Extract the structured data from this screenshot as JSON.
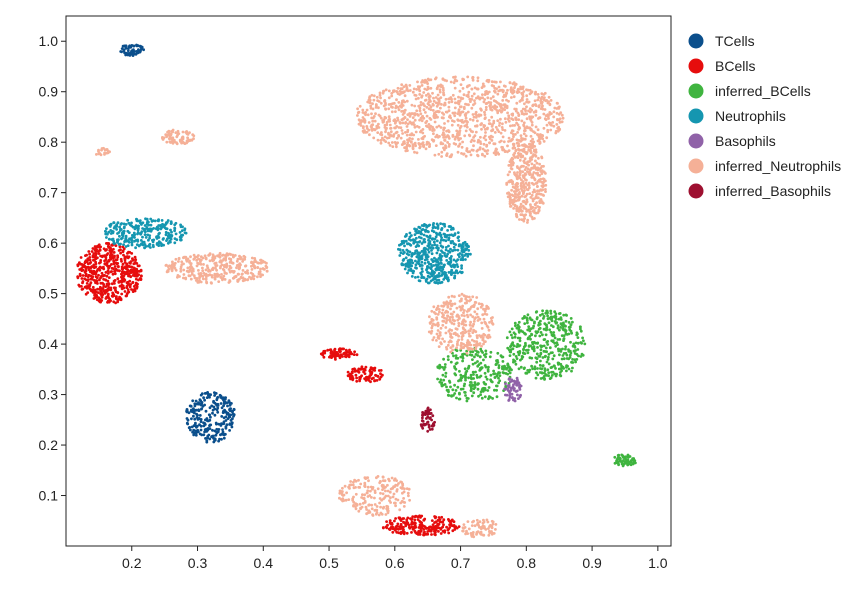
{
  "chart_data": {
    "type": "scatter",
    "title": "",
    "xlabel": "",
    "ylabel": "",
    "xlim": [
      0.1,
      1.02
    ],
    "ylim": [
      0.0,
      1.05
    ],
    "grid": false,
    "legend_position": "right",
    "x_ticks": [
      0.2,
      0.3,
      0.4,
      0.5,
      0.6,
      0.7,
      0.8,
      0.9,
      1.0
    ],
    "y_ticks": [
      0.1,
      0.2,
      0.3,
      0.4,
      0.5,
      0.6,
      0.7,
      0.8,
      0.9,
      1.0
    ],
    "x_tick_labels": [
      "0.2",
      "0.3",
      "0.4",
      "0.5",
      "0.6",
      "0.7",
      "0.8",
      "0.9",
      "1.0"
    ],
    "y_tick_labels": [
      "0.1",
      "0.2",
      "0.3",
      "0.4",
      "0.5",
      "0.6",
      "0.7",
      "0.8",
      "0.9",
      "1.0"
    ],
    "series": [
      {
        "name": "TCells",
        "color": "#0b4f8c",
        "clusters": [
          {
            "cx": 0.2,
            "cy": 0.983,
            "rx": 0.018,
            "ry": 0.012,
            "n": 60
          },
          {
            "cx": 0.32,
            "cy": 0.255,
            "rx": 0.038,
            "ry": 0.05,
            "n": 260
          }
        ]
      },
      {
        "name": "BCells",
        "color": "#e60d0d",
        "clusters": [
          {
            "cx": 0.165,
            "cy": 0.54,
            "rx": 0.05,
            "ry": 0.06,
            "n": 520
          },
          {
            "cx": 0.515,
            "cy": 0.38,
            "rx": 0.028,
            "ry": 0.012,
            "n": 80
          },
          {
            "cx": 0.555,
            "cy": 0.34,
            "rx": 0.028,
            "ry": 0.016,
            "n": 90
          },
          {
            "cx": 0.64,
            "cy": 0.04,
            "rx": 0.06,
            "ry": 0.02,
            "n": 220
          }
        ]
      },
      {
        "name": "inferred_BCells",
        "color": "#3fb43f",
        "clusters": [
          {
            "cx": 0.72,
            "cy": 0.34,
            "rx": 0.06,
            "ry": 0.055,
            "n": 260
          },
          {
            "cx": 0.83,
            "cy": 0.4,
            "rx": 0.06,
            "ry": 0.07,
            "n": 400
          },
          {
            "cx": 0.95,
            "cy": 0.17,
            "rx": 0.018,
            "ry": 0.012,
            "n": 60
          }
        ]
      },
      {
        "name": "Neutrophils",
        "color": "#1596b0",
        "clusters": [
          {
            "cx": 0.22,
            "cy": 0.62,
            "rx": 0.065,
            "ry": 0.03,
            "n": 280
          },
          {
            "cx": 0.66,
            "cy": 0.58,
            "rx": 0.055,
            "ry": 0.06,
            "n": 500
          }
        ]
      },
      {
        "name": "Basophils",
        "color": "#9062a8",
        "clusters": [
          {
            "cx": 0.78,
            "cy": 0.31,
            "rx": 0.014,
            "ry": 0.025,
            "n": 60
          }
        ]
      },
      {
        "name": "inferred_Neutrophils",
        "color": "#f5b097",
        "clusters": [
          {
            "cx": 0.7,
            "cy": 0.85,
            "rx": 0.16,
            "ry": 0.08,
            "n": 1200
          },
          {
            "cx": 0.8,
            "cy": 0.72,
            "rx": 0.03,
            "ry": 0.08,
            "n": 400
          },
          {
            "cx": 0.7,
            "cy": 0.44,
            "rx": 0.05,
            "ry": 0.06,
            "n": 320
          },
          {
            "cx": 0.33,
            "cy": 0.55,
            "rx": 0.08,
            "ry": 0.03,
            "n": 340
          },
          {
            "cx": 0.27,
            "cy": 0.81,
            "rx": 0.025,
            "ry": 0.015,
            "n": 80
          },
          {
            "cx": 0.155,
            "cy": 0.78,
            "rx": 0.012,
            "ry": 0.008,
            "n": 20
          },
          {
            "cx": 0.57,
            "cy": 0.1,
            "rx": 0.055,
            "ry": 0.04,
            "n": 200
          },
          {
            "cx": 0.73,
            "cy": 0.035,
            "rx": 0.03,
            "ry": 0.018,
            "n": 70
          }
        ]
      },
      {
        "name": "inferred_Basophils",
        "color": "#9e1030",
        "clusters": [
          {
            "cx": 0.65,
            "cy": 0.25,
            "rx": 0.011,
            "ry": 0.025,
            "n": 55
          }
        ]
      }
    ]
  }
}
